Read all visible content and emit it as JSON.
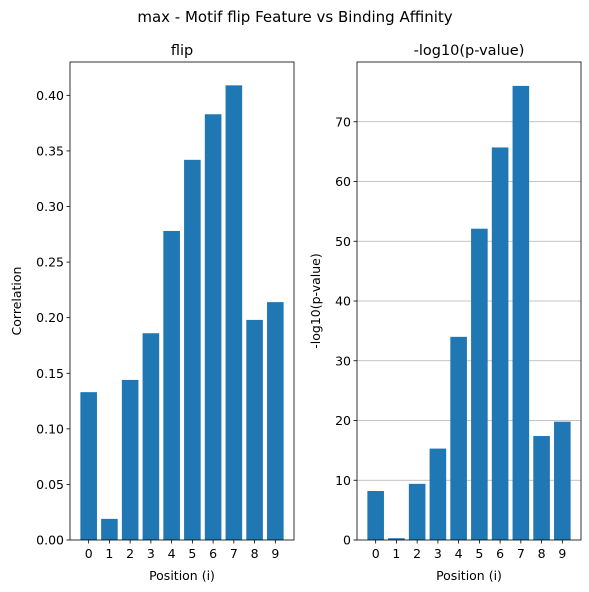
{
  "suptitle": "max - Motif flip Feature vs Binding Affinity",
  "colors": {
    "bar": "#1f77b4",
    "grid": "#b0b0b0",
    "axis": "#000000"
  },
  "chart_data": [
    {
      "type": "bar",
      "title": "flip",
      "xlabel": "Position (i)",
      "ylabel": "Correlation",
      "categories": [
        "0",
        "1",
        "2",
        "3",
        "4",
        "5",
        "6",
        "7",
        "8",
        "9"
      ],
      "values": [
        0.133,
        0.019,
        0.144,
        0.186,
        0.278,
        0.342,
        0.383,
        0.409,
        0.198,
        0.214
      ],
      "ylim": [
        0,
        0.43
      ],
      "yticks": [
        0.0,
        0.05,
        0.1,
        0.15,
        0.2,
        0.25,
        0.3,
        0.35,
        0.4
      ],
      "ytick_labels": [
        "0.00",
        "0.05",
        "0.10",
        "0.15",
        "0.20",
        "0.25",
        "0.30",
        "0.35",
        "0.40"
      ],
      "grid": false
    },
    {
      "type": "bar",
      "title": "-log10(p-value)",
      "xlabel": "Position (i)",
      "ylabel": "-log10(p-value)",
      "categories": [
        "0",
        "1",
        "2",
        "3",
        "4",
        "5",
        "6",
        "7",
        "8",
        "9"
      ],
      "values": [
        8.2,
        0.3,
        9.4,
        15.3,
        34.0,
        52.1,
        65.7,
        76.0,
        17.4,
        19.8
      ],
      "ylim": [
        0,
        80
      ],
      "yticks": [
        0,
        10,
        20,
        30,
        40,
        50,
        60,
        70
      ],
      "ytick_labels": [
        "0",
        "10",
        "20",
        "30",
        "40",
        "50",
        "60",
        "70"
      ],
      "grid": true,
      "grid_axis": "y"
    }
  ]
}
